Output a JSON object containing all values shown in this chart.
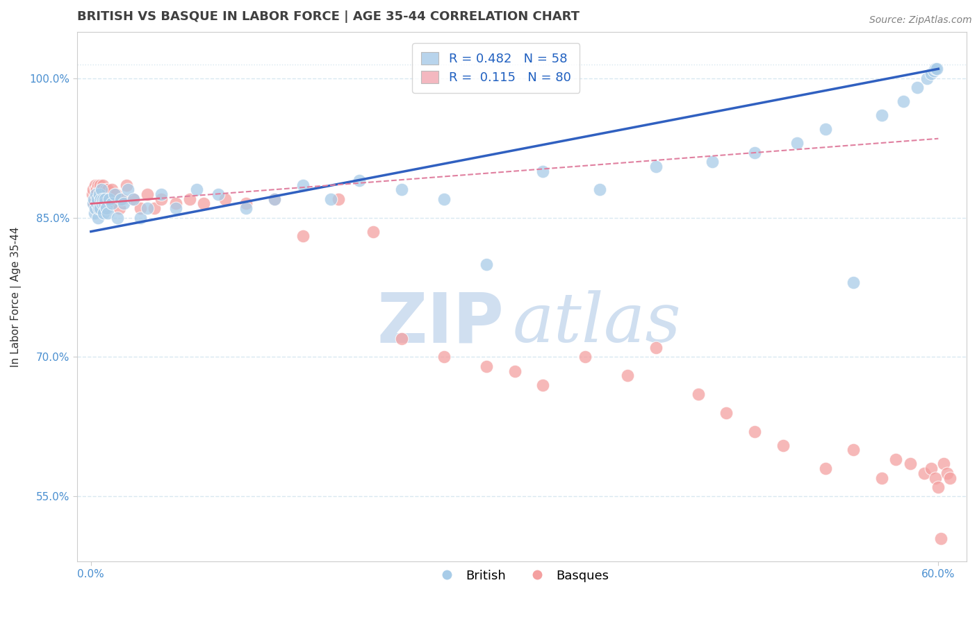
{
  "title": "BRITISH VS BASQUE IN LABOR FORCE | AGE 35-44 CORRELATION CHART",
  "source_text": "Source: ZipAtlas.com",
  "ylabel": "In Labor Force | Age 35-44",
  "xlim": [
    0.0,
    60.0
  ],
  "ylim": [
    48.0,
    104.0
  ],
  "yticks": [
    55.0,
    70.0,
    85.0,
    100.0
  ],
  "ytick_labels": [
    "55.0%",
    "70.0%",
    "85.0%",
    "100.0%"
  ],
  "xtick_labels": [
    "0.0%",
    "60.0%"
  ],
  "xtick_pos": [
    0.0,
    60.0
  ],
  "british_R": 0.482,
  "british_N": 58,
  "basque_R": 0.115,
  "basque_N": 80,
  "british_color": "#a8cce8",
  "basque_color": "#f4a0a0",
  "british_line_color": "#3060c0",
  "basque_line_color": "#e06080",
  "basque_line_dashed_color": "#e080a0",
  "legend_box_color_british": "#b8d4ec",
  "legend_box_color_basque": "#f4b8c0",
  "watermark_zip": "ZIP",
  "watermark_atlas": "atlas",
  "watermark_color": "#d0dff0",
  "background_color": "#ffffff",
  "title_color": "#404040",
  "title_fontsize": 13,
  "tick_color": "#4a8fd0",
  "grid_color": "#d8e8f0",
  "brit_trend_y0": 83.5,
  "brit_trend_y1": 101.0,
  "basq_trend_y0": 86.5,
  "basq_trend_y1": 93.5,
  "basq_solid_x_end": 5.0,
  "british_x": [
    0.15,
    0.2,
    0.25,
    0.3,
    0.35,
    0.4,
    0.45,
    0.5,
    0.55,
    0.6,
    0.65,
    0.7,
    0.75,
    0.8,
    0.85,
    0.9,
    0.95,
    1.0,
    1.1,
    1.2,
    1.3,
    1.5,
    1.7,
    1.9,
    2.1,
    2.3,
    2.6,
    3.0,
    3.5,
    4.0,
    5.0,
    6.0,
    7.5,
    9.0,
    11.0,
    13.0,
    15.0,
    17.0,
    19.0,
    22.0,
    25.0,
    28.0,
    32.0,
    36.0,
    40.0,
    44.0,
    47.0,
    50.0,
    52.0,
    54.0,
    56.0,
    57.5,
    58.5,
    59.2,
    59.5,
    59.7,
    59.8,
    59.9
  ],
  "british_y": [
    86.5,
    87.0,
    85.5,
    86.0,
    87.5,
    86.5,
    87.0,
    85.0,
    86.0,
    87.5,
    86.0,
    87.0,
    88.0,
    86.5,
    87.0,
    85.5,
    86.5,
    87.0,
    86.0,
    85.5,
    87.0,
    86.5,
    87.5,
    85.0,
    87.0,
    86.5,
    88.0,
    87.0,
    85.0,
    86.0,
    87.5,
    86.0,
    88.0,
    87.5,
    86.0,
    87.0,
    88.5,
    87.0,
    89.0,
    88.0,
    87.0,
    80.0,
    90.0,
    88.0,
    90.5,
    91.0,
    92.0,
    93.0,
    94.5,
    78.0,
    96.0,
    97.5,
    99.0,
    100.0,
    100.5,
    100.8,
    101.0,
    101.0
  ],
  "basque_x": [
    0.1,
    0.15,
    0.2,
    0.25,
    0.3,
    0.32,
    0.35,
    0.38,
    0.4,
    0.42,
    0.45,
    0.48,
    0.5,
    0.52,
    0.55,
    0.58,
    0.6,
    0.62,
    0.65,
    0.68,
    0.7,
    0.72,
    0.75,
    0.78,
    0.8,
    0.85,
    0.9,
    0.95,
    1.0,
    1.05,
    1.1,
    1.15,
    1.2,
    1.3,
    1.4,
    1.5,
    1.6,
    1.8,
    2.0,
    2.2,
    2.5,
    3.0,
    3.5,
    4.0,
    4.5,
    5.0,
    6.0,
    7.0,
    8.0,
    9.5,
    11.0,
    13.0,
    15.0,
    17.5,
    20.0,
    22.0,
    25.0,
    28.0,
    30.0,
    32.0,
    35.0,
    38.0,
    40.0,
    43.0,
    45.0,
    47.0,
    49.0,
    52.0,
    54.0,
    56.0,
    57.0,
    58.0,
    59.0,
    59.5,
    59.8,
    60.0,
    60.2,
    60.4,
    60.6,
    60.8
  ],
  "basque_y": [
    87.5,
    88.0,
    86.5,
    87.0,
    88.5,
    87.0,
    88.0,
    86.5,
    87.5,
    88.0,
    86.0,
    87.0,
    88.5,
    87.0,
    86.5,
    88.0,
    87.0,
    86.5,
    88.5,
    87.0,
    86.0,
    87.5,
    88.0,
    86.5,
    87.0,
    88.5,
    87.0,
    86.0,
    87.5,
    88.0,
    86.5,
    87.0,
    88.0,
    86.5,
    87.0,
    88.0,
    86.5,
    87.5,
    86.0,
    87.0,
    88.5,
    87.0,
    86.0,
    87.5,
    86.0,
    87.0,
    86.5,
    87.0,
    86.5,
    87.0,
    86.5,
    87.0,
    83.0,
    87.0,
    83.5,
    72.0,
    70.0,
    69.0,
    68.5,
    67.0,
    70.0,
    68.0,
    71.0,
    66.0,
    64.0,
    62.0,
    60.5,
    58.0,
    60.0,
    57.0,
    59.0,
    58.5,
    57.5,
    58.0,
    57.0,
    56.0,
    50.5,
    58.5,
    57.5,
    57.0
  ]
}
